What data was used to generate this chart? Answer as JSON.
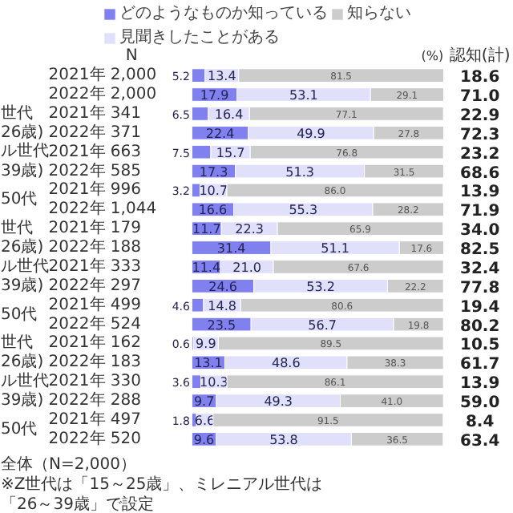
{
  "chart_data": {
    "type": "bar",
    "orientation": "horizontal",
    "stacked": true,
    "legend": "top",
    "categories": [
      "2021年 2,000",
      "2022年 2,000",
      "2021年 341",
      "2022年 371",
      "2021年 663",
      "2022年 585",
      "2021年 996",
      "2022年 1,044",
      "2021年 179",
      "2022年 188",
      "2021年 333",
      "2022年 297",
      "2021年 499",
      "2022年 524",
      "2021年 162",
      "2022年 183",
      "2021年 330",
      "2022年 288",
      "2021年 497",
      "2022年 520"
    ],
    "series": [
      {
        "name": "どのようなものか知っている",
        "color": "#8080ee",
        "values": [
          5.2,
          17.9,
          6.5,
          22.4,
          7.5,
          17.3,
          3.2,
          16.6,
          11.7,
          31.4,
          11.4,
          24.6,
          4.6,
          23.5,
          0.6,
          13.1,
          3.6,
          9.7,
          1.8,
          9.6
        ],
        "value_labels": [
          "5.2",
          "17.9",
          "6.5",
          "22.4",
          "7.5",
          "17.3",
          "3.2",
          "16.6",
          "11.7",
          "31.4",
          "11.4",
          "24.6",
          "4.6",
          "23.5",
          "0.6",
          "13.1",
          "3.6",
          "9.7",
          "1.8",
          "9.6"
        ]
      },
      {
        "name": "見聞きしたことがある",
        "color": "#e0e0fa",
        "values": [
          13.4,
          53.1,
          16.4,
          49.9,
          15.7,
          51.3,
          10.7,
          55.3,
          22.3,
          51.1,
          21.0,
          53.2,
          14.8,
          56.7,
          9.9,
          48.6,
          10.3,
          49.3,
          6.6,
          53.8
        ],
        "value_labels": [
          "13.4",
          "53.1",
          "16.4",
          "49.9",
          "15.7",
          "51.3",
          "10.7",
          "55.3",
          "22.3",
          "51.1",
          "21.0",
          "53.2",
          "14.8",
          "56.7",
          "9.9",
          "48.6",
          "10.3",
          "49.3",
          "6.6",
          "53.8"
        ]
      },
      {
        "name": "知らない",
        "color": "#cccccc",
        "values": [
          81.5,
          29.1,
          77.1,
          27.8,
          76.8,
          31.5,
          86.0,
          28.2,
          65.9,
          17.6,
          67.6,
          22.2,
          80.6,
          19.8,
          89.5,
          38.3,
          86.1,
          41.0,
          91.5,
          36.5
        ],
        "value_labels": [
          "81.5",
          "29.1",
          "77.1",
          "27.8",
          "76.8",
          "31.5",
          "86.0",
          "28.2",
          "65.9",
          "17.6",
          "67.6",
          "22.2",
          "80.6",
          "19.8",
          "89.5",
          "38.3",
          "86.1",
          "41.0",
          "91.5",
          "36.5"
        ]
      }
    ],
    "annotations": [
      "N",
      "(%)",
      "認知(計)",
      "世代\n26歳)",
      "ル世代\n39歳)",
      "50代",
      "世代\n26歳)",
      "ル世代\n39歳)",
      "50代",
      "世代\n26歳)",
      "ル世代\n39歳)",
      "50代",
      "全体（N=2,000）",
      "※Z世代は「15～25歳」、ミレニアル世代は",
      "「26～39歳」で設定",
      "18.6",
      "71.0",
      "22.9",
      "72.3",
      "23.2",
      "68.6",
      "13.9",
      "71.9",
      "34.0",
      "82.5",
      "32.4",
      "77.8",
      "19.4",
      "80.2",
      "10.5",
      "61.7",
      "13.9",
      "59.0",
      "8.4",
      "63.4"
    ]
  }
}
